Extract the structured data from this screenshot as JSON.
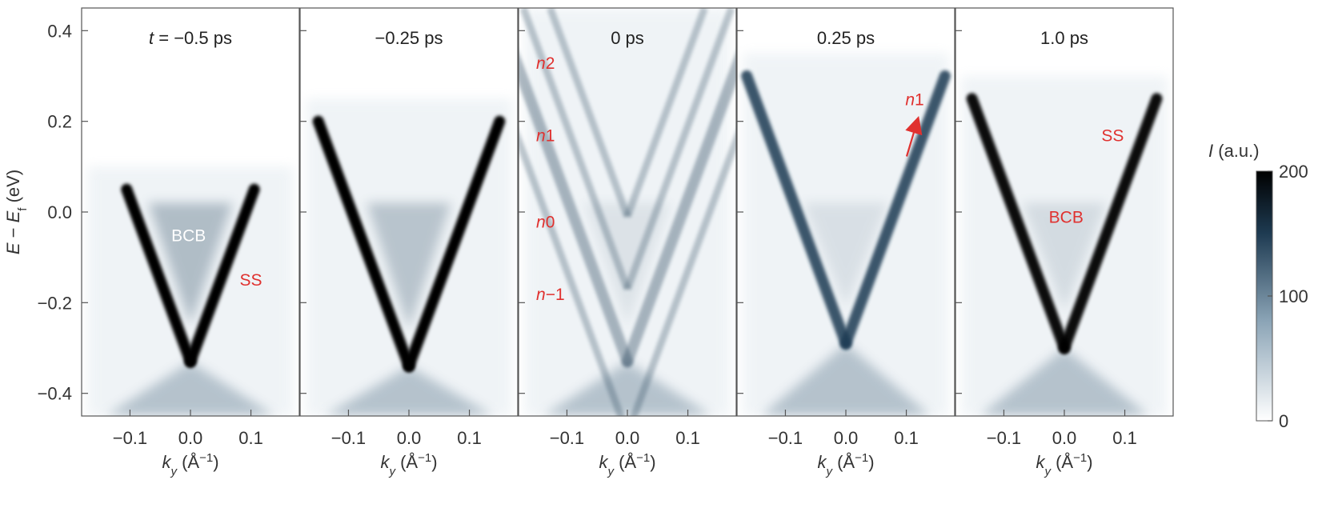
{
  "chart_data": {
    "type": "heatmap",
    "description": "ARPES intensity maps E - Ef versus k_y at five pump-probe delays",
    "ylabel_parts": [
      "E",
      " − ",
      "E",
      "f",
      " (eV)"
    ],
    "xlabel_parts": [
      "k",
      "y",
      " (Å",
      "−1",
      ")"
    ],
    "ylim": [
      -0.45,
      0.45
    ],
    "xlim": [
      -0.18,
      0.18
    ],
    "yticks": [
      0.4,
      0.2,
      0.0,
      -0.2,
      -0.4
    ],
    "ytick_labels": [
      "0.4",
      "0.2",
      "0.0",
      "−0.2",
      "−0.4"
    ],
    "xticks": [
      -0.1,
      0.0,
      0.1
    ],
    "xtick_labels": [
      "−0.1",
      "0.0",
      "0.1"
    ],
    "colorbar": {
      "label_parts": [
        "I",
        " (a.u.)"
      ],
      "range": [
        0,
        200
      ],
      "ticks": [
        0,
        100,
        200
      ],
      "tick_labels": [
        "0",
        "100",
        "200"
      ],
      "colors": [
        "#ffffff",
        "#8ba4b6",
        "#1e3b52",
        "#000000"
      ]
    },
    "panels": [
      {
        "title_parts": [
          "t",
          " = −0.5 ps"
        ],
        "dirac_point": -0.33,
        "upper_cutoff": 0.05,
        "band_slope": 3.6,
        "band_intensity": 1.0,
        "bcb_intensity": 0.35,
        "annotations": [
          {
            "text": "BCB",
            "k": -0.003,
            "E": -0.05,
            "color": "#ffffff"
          },
          {
            "text": "SS",
            "k": 0.1,
            "E": -0.148,
            "color": "#e0312f"
          }
        ]
      },
      {
        "title_parts": [
          "",
          "−0.25 ps"
        ],
        "dirac_point": -0.34,
        "upper_cutoff": 0.2,
        "band_slope": 3.6,
        "band_intensity": 1.0,
        "bcb_intensity": 0.3,
        "annotations": []
      },
      {
        "title_parts": [
          "",
          "0 ps"
        ],
        "dirac_point": -0.33,
        "upper_cutoff": 0.45,
        "band_slope": 3.6,
        "band_intensity": 0.35,
        "bcb_intensity": 0.1,
        "replica_labels": [
          {
            "italic": "n",
            "rest": "2",
            "E": 0.33
          },
          {
            "italic": "n",
            "rest": "1",
            "E": 0.17
          },
          {
            "italic": "n",
            "rest": "0",
            "E": -0.02
          },
          {
            "italic": "n",
            "rest": "−1",
            "E": -0.18
          }
        ],
        "annotations": []
      },
      {
        "title_parts": [
          "",
          "0.25 ps"
        ],
        "dirac_point": -0.29,
        "upper_cutoff": 0.3,
        "band_slope": 3.6,
        "band_intensity": 0.85,
        "bcb_intensity": 0.12,
        "arrow_label": {
          "italic": "n",
          "rest": "1",
          "k": 0.09,
          "E": 0.225,
          "color": "#e0312f"
        },
        "annotations": []
      },
      {
        "title_parts": [
          "",
          "1.0 ps"
        ],
        "dirac_point": -0.3,
        "upper_cutoff": 0.25,
        "band_slope": 3.6,
        "band_intensity": 0.95,
        "bcb_intensity": 0.15,
        "annotations": [
          {
            "text": "SS",
            "k": 0.08,
            "E": 0.17,
            "color": "#e0312f"
          },
          {
            "text": "BCB",
            "k": 0.003,
            "E": -0.01,
            "color": "#e0312f"
          }
        ]
      }
    ]
  }
}
